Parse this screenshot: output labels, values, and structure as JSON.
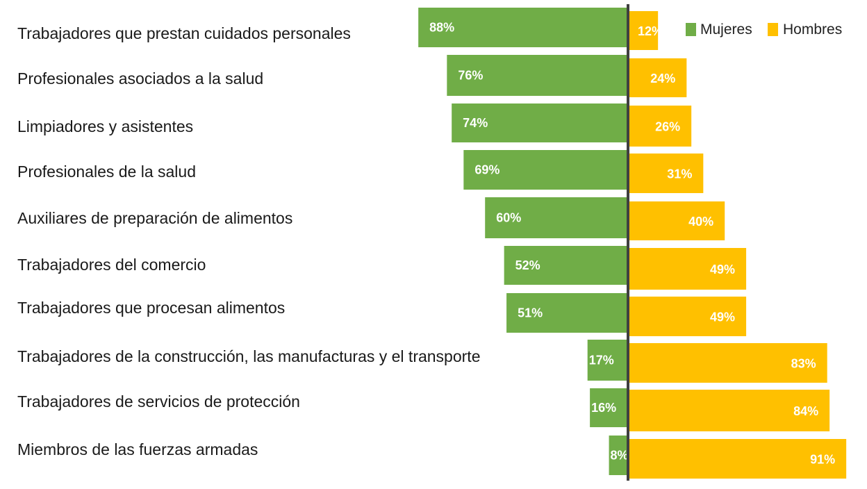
{
  "chart_data": {
    "type": "bar",
    "orientation": "horizontal-diverging",
    "categories": [
      "Trabajadores que prestan cuidados personales",
      "Profesionales asociados a la salud",
      "Limpiadores y asistentes",
      "Profesionales de la salud",
      "Auxiliares de preparación de alimentos",
      "Trabajadores del comercio",
      "Trabajadores que procesan alimentos",
      "Trabajadores de la construcción, las manufacturas y el transporte",
      "Trabajadores de servicios de protección",
      "Miembros de las fuerzas armadas"
    ],
    "series": [
      {
        "name": "Mujeres",
        "color": "#70AD47",
        "values": [
          88,
          76,
          74,
          69,
          60,
          52,
          51,
          17,
          16,
          8
        ],
        "labels": [
          "88%",
          "76%",
          "74%",
          "69%",
          "60%",
          "52%",
          "51%",
          "17%",
          "16%",
          "8%"
        ]
      },
      {
        "name": "Hombres",
        "color": "#FFC000",
        "values": [
          12,
          24,
          26,
          31,
          40,
          49,
          49,
          83,
          84,
          91
        ],
        "labels": [
          "12%",
          "24%",
          "26%",
          "31%",
          "40%",
          "49%",
          "49%",
          "83%",
          "84%",
          "91%"
        ]
      }
    ],
    "unit": "%",
    "legend_position": "top-right",
    "grid": false,
    "axis_color": "#404040"
  }
}
